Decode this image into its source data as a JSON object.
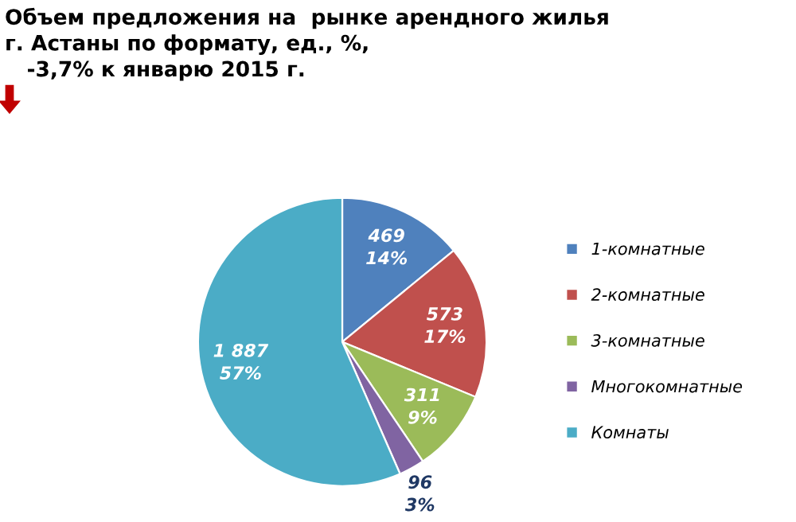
{
  "chart_data": {
    "type": "pie",
    "title": "Объем предложения на  рынке арендного жилья\nг. Астаны по формату, ед., %,\n   -3,7% к январю 2015 г.",
    "categories": [
      "1-комнатные",
      "2-комнатные",
      "3-комнатные",
      "Многокомнатные",
      "Комнаты"
    ],
    "values": [
      469,
      573,
      311,
      96,
      1887
    ],
    "colors": [
      "#4f81bd",
      "#c0504d",
      "#9bbb59",
      "#8064a2",
      "#4bacc6"
    ],
    "value_labels": [
      "469\n14%",
      "573\n17%",
      "311\n9%",
      "96\n3%",
      "1 887\n57%"
    ],
    "legend": "right"
  }
}
